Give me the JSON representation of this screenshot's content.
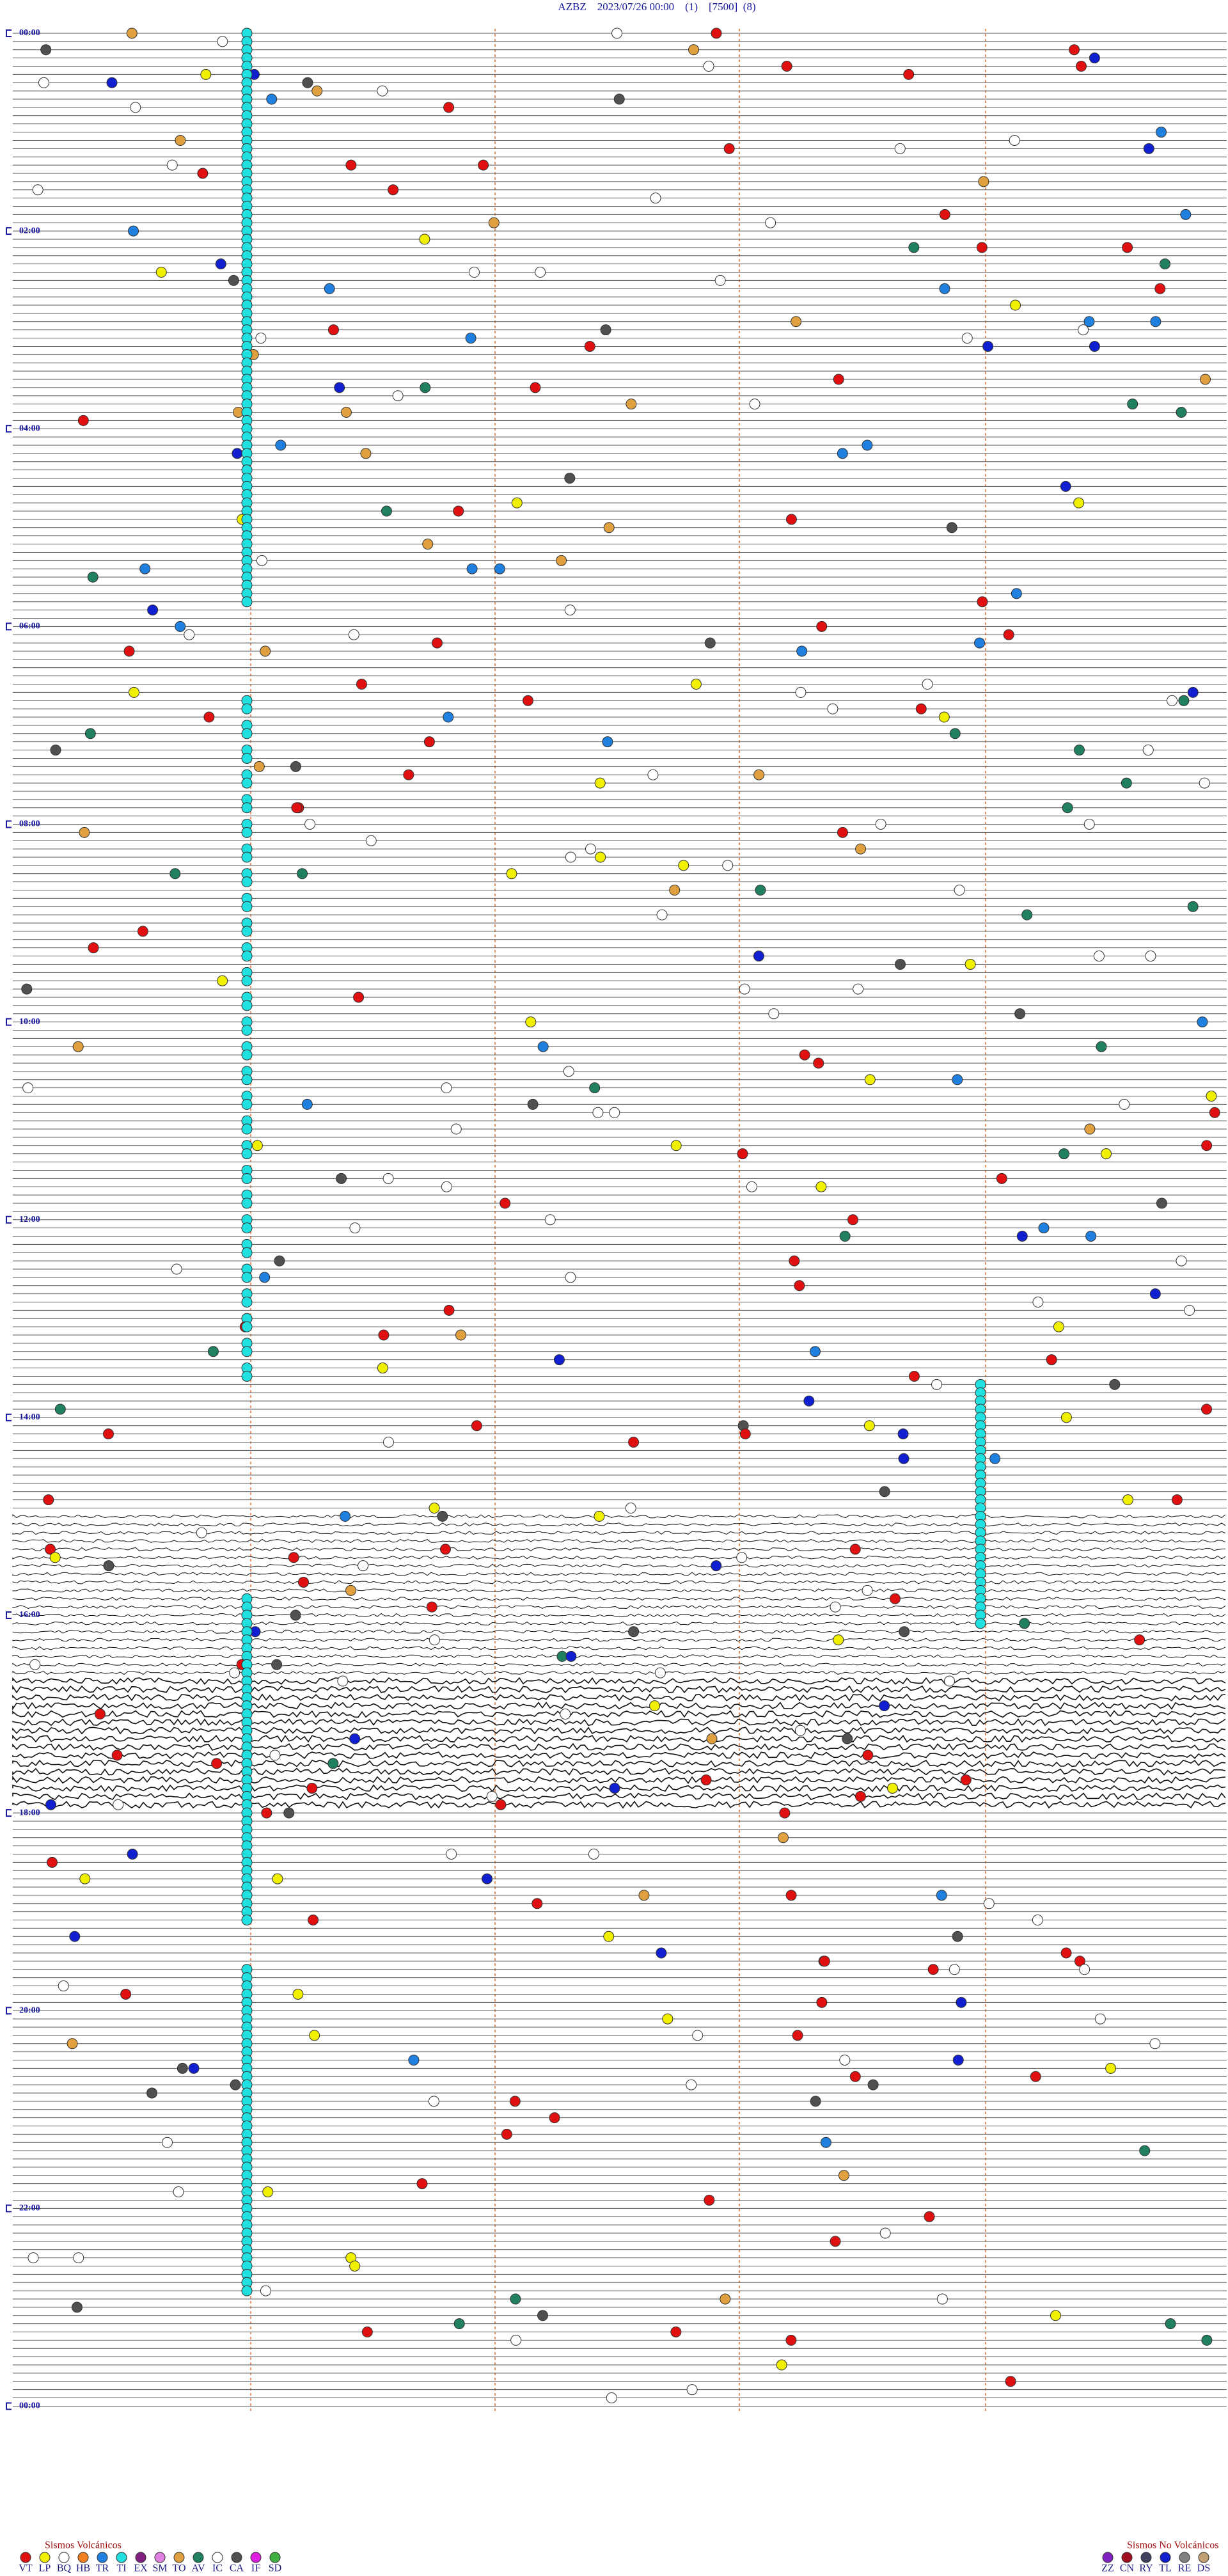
{
  "header": {
    "title": "AZBZ    2023/07/26 00:00    (1)    [7500]  (8)"
  },
  "time_labels": [
    "00:00",
    "02:00",
    "04:00",
    "06:00",
    "08:00",
    "10:00",
    "12:00",
    "14:00",
    "16:00",
    "18:00",
    "20:00",
    "22:00",
    "00:00"
  ],
  "legend": {
    "volcanic": {
      "title": "Sismos Volcánicos",
      "items": [
        {
          "label": "VT",
          "color": "#e01010"
        },
        {
          "label": "LP",
          "color": "#f0f000"
        },
        {
          "label": "BQ",
          "color": "#ffffff"
        },
        {
          "label": "HB",
          "color": "#f08020"
        },
        {
          "label": "TR",
          "color": "#2080e0"
        },
        {
          "label": "TI",
          "color": "#20e0e0"
        },
        {
          "label": "EX",
          "color": "#802080"
        },
        {
          "label": "SM",
          "color": "#e080e0"
        },
        {
          "label": "TO",
          "color": "#e0a040"
        },
        {
          "label": "AV",
          "color": "#208060"
        },
        {
          "label": "IC",
          "color": "#ffffff"
        },
        {
          "label": "CA",
          "color": "#505050"
        },
        {
          "label": "IF",
          "color": "#e020e0"
        },
        {
          "label": "SD",
          "color": "#40b040"
        }
      ]
    },
    "non_volcanic": {
      "title": "Sismos No Volcánicos",
      "items": [
        {
          "label": "ZZ",
          "color": "#8020c0"
        },
        {
          "label": "CN",
          "color": "#a01020"
        },
        {
          "label": "RY",
          "color": "#404060"
        },
        {
          "label": "TL",
          "color": "#1020d0"
        },
        {
          "label": "RE",
          "color": "#808080"
        },
        {
          "label": "DS",
          "color": "#c0a070"
        }
      ]
    }
  }
}
